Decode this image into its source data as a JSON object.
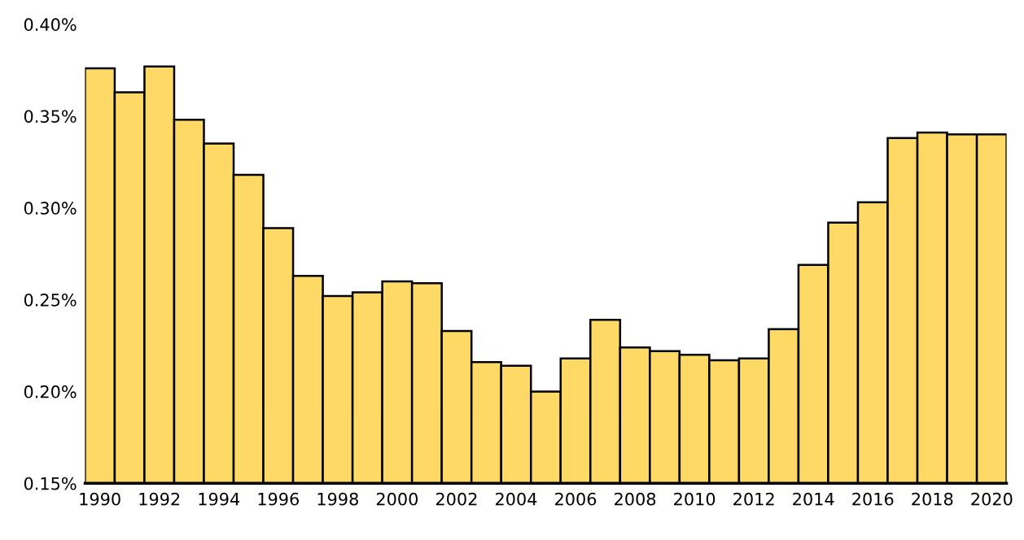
{
  "chart_data": {
    "type": "bar",
    "categories": [
      "1990",
      null,
      "1992",
      null,
      "1994",
      null,
      "1996",
      null,
      "1998",
      null,
      "2000",
      null,
      "2002",
      null,
      "2004",
      null,
      "2006",
      null,
      "2008",
      null,
      "2010",
      null,
      "2012",
      null,
      "2014",
      null,
      "2016",
      null,
      "2018",
      null,
      "2020"
    ],
    "values": [
      0.376,
      0.363,
      0.377,
      0.348,
      0.335,
      0.318,
      0.289,
      0.263,
      0.252,
      0.254,
      0.26,
      0.259,
      0.233,
      0.216,
      0.214,
      0.2,
      0.218,
      0.239,
      0.224,
      0.222,
      0.22,
      0.217,
      0.218,
      0.234,
      0.269,
      0.292,
      0.303,
      0.338,
      0.341,
      0.34,
      0.34
    ],
    "color": "#ffd966",
    "ylim": [
      0.15,
      0.4
    ],
    "yticks": [
      {
        "value": 0.15,
        "label": "0.15%"
      },
      {
        "value": 0.2,
        "label": "0.20%"
      },
      {
        "value": 0.25,
        "label": "0.25%"
      },
      {
        "value": 0.3,
        "label": "0.30%"
      },
      {
        "value": 0.35,
        "label": "0.35%"
      },
      {
        "value": 0.4,
        "label": "0.40%"
      }
    ],
    "grid": false
  }
}
